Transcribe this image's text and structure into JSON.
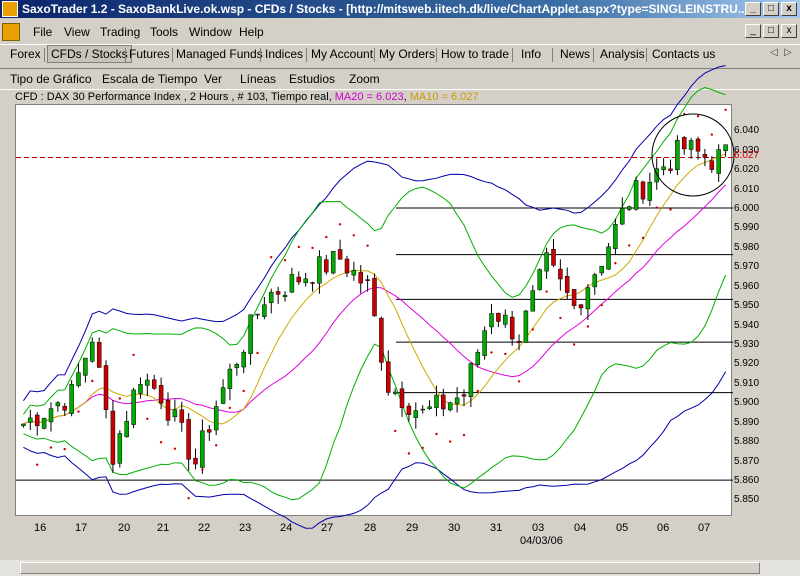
{
  "window": {
    "title": "SaxoTrader 1.2 - SaxoBankLive.ok.wsp - CFDs / Stocks - [http://mitsweb.iitech.dk/live/ChartApplet.aspx?type=SINGLEINSTRU...",
    "minimize": "_",
    "maximize": "□",
    "close": "x"
  },
  "menu": {
    "items": [
      {
        "label": "File"
      },
      {
        "label": "View"
      },
      {
        "label": "Trading"
      },
      {
        "label": "Tools"
      },
      {
        "label": "Window"
      },
      {
        "label": "Help"
      }
    ]
  },
  "mdi": {
    "minimize": "_",
    "restore": "□",
    "close": "x"
  },
  "nav": {
    "tabs": [
      {
        "label": "Forex"
      },
      {
        "label": "CFDs / Stocks"
      },
      {
        "label": "Futures"
      },
      {
        "label": "Managed Funds"
      },
      {
        "label": "Indices"
      },
      {
        "label": "My Account"
      },
      {
        "label": "My Orders"
      },
      {
        "label": "How to trade"
      },
      {
        "label": "Info"
      },
      {
        "label": "News"
      },
      {
        "label": "Analysis"
      },
      {
        "label": "Contacts us"
      }
    ],
    "prev": "◁",
    "next": "▷"
  },
  "toolbar": {
    "items": [
      {
        "label": "Tipo de Gráfico"
      },
      {
        "label": "Escala de Tiempo"
      },
      {
        "label": "Ver"
      },
      {
        "label": "Líneas"
      },
      {
        "label": "Estudios"
      },
      {
        "label": "Zoom"
      }
    ]
  },
  "chart_info": {
    "main": "CFD : DAX 30 Performance Index , 2 Hours , # 103, Tiempo real",
    "ma20": "MA20 = 6.023",
    "ma10": "MA10 = 6.027"
  },
  "chart_data": {
    "type": "candlestick",
    "instrument": "DAX 30 Performance Index",
    "ylim": [
      5.842,
      6.054
    ],
    "y_ticks": [
      "6.040",
      "6.030",
      "6.020",
      "6.010",
      "6.000",
      "5.990",
      "5.980",
      "5.970",
      "5.960",
      "5.950",
      "5.940",
      "5.930",
      "5.920",
      "5.910",
      "5.900",
      "5.890",
      "5.880",
      "5.870",
      "5.860",
      "5.850"
    ],
    "x_ticks": [
      "16",
      "17",
      "20",
      "21",
      "22",
      "23",
      "24",
      "27",
      "28",
      "29",
      "30",
      "31",
      "03",
      "04",
      "05",
      "06",
      "07"
    ],
    "x_date_label": "04/03/06",
    "current_price_label": "6.027",
    "current_price": 6.027,
    "ma20_last": 6.023,
    "ma10_last": 6.027,
    "horizontal_levels": [
      6.001,
      5.977,
      5.954,
      5.932,
      5.906,
      5.861
    ],
    "colors": {
      "up": "#00aa00",
      "down": "#cc0000",
      "ma20": "#e000e0",
      "ma10": "#ccaa00",
      "bollinger_inner": "#00b000",
      "bollinger_outer": "#0000aa",
      "sar": "#cc0000",
      "level": "#000000"
    }
  }
}
